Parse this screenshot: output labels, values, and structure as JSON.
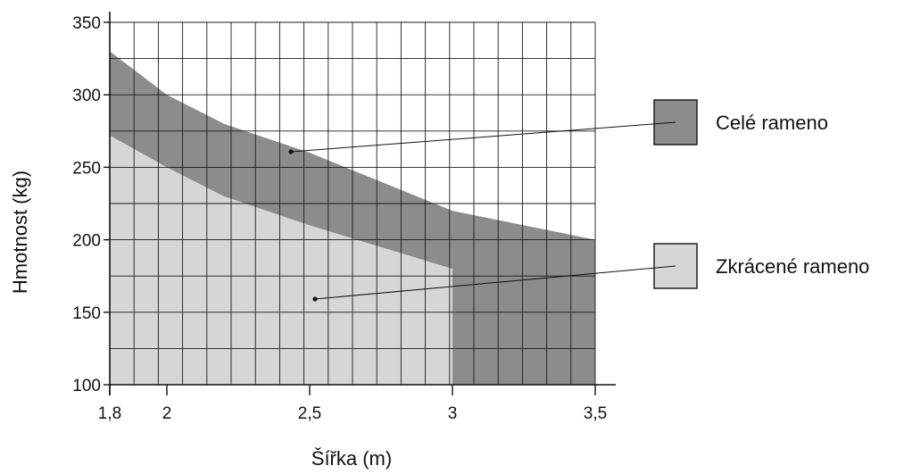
{
  "chart_data": {
    "type": "area",
    "title": "",
    "xlabel": "Šířka (m)",
    "ylabel": "Hmotnost (kg)",
    "xlim": [
      1.8,
      3.5
    ],
    "ylim": [
      100,
      350
    ],
    "x_ticks": [
      1.8,
      2,
      2.5,
      3,
      3.5
    ],
    "x_tick_labels": [
      "1,8",
      "2",
      "2,5",
      "3",
      "3,5"
    ],
    "y_ticks": [
      100,
      150,
      200,
      250,
      300,
      350
    ],
    "y_tick_labels": [
      "100",
      "150",
      "200",
      "250",
      "300",
      "350"
    ],
    "grid": true,
    "legend_position": "right",
    "series": [
      {
        "name": "Celé rameno",
        "color": "#8c8c8c",
        "x": [
          1.8,
          2.0,
          2.2,
          2.5,
          3.0,
          3.5
        ],
        "values": [
          330,
          300,
          280,
          260,
          220,
          200
        ]
      },
      {
        "name": "Zkrácené rameno",
        "color": "#d6d6d6",
        "x": [
          1.8,
          2.0,
          2.2,
          2.5,
          3.0
        ],
        "values": [
          272,
          250,
          230,
          210,
          180
        ]
      }
    ]
  }
}
